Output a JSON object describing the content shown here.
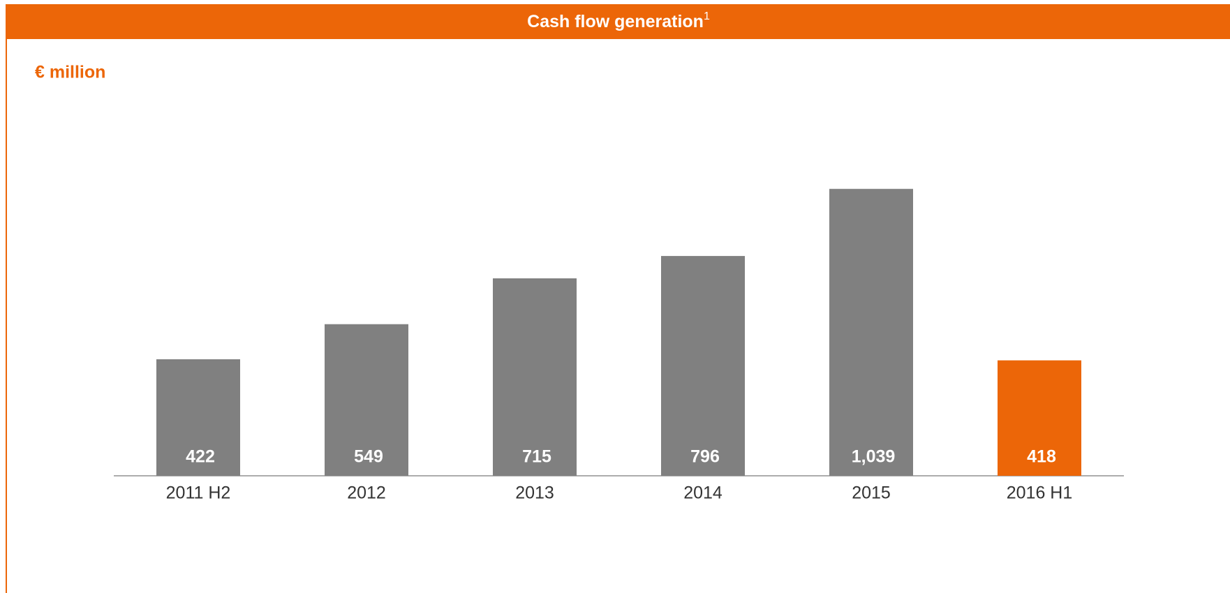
{
  "chart_data": {
    "type": "bar",
    "title": "Cash flow generation",
    "title_note": "1",
    "subtitle": "€ million",
    "categories": [
      "2011 H2",
      "2012",
      "2013",
      "2014",
      "2015",
      "2016 H1"
    ],
    "values": [
      422,
      549,
      715,
      796,
      1039,
      418
    ],
    "value_labels": [
      "422",
      "549",
      "715",
      "796",
      "1,039",
      "418"
    ],
    "colors": [
      "#808080",
      "#808080",
      "#808080",
      "#808080",
      "#808080",
      "#ec6608"
    ],
    "ylim": [
      0,
      1200
    ]
  }
}
